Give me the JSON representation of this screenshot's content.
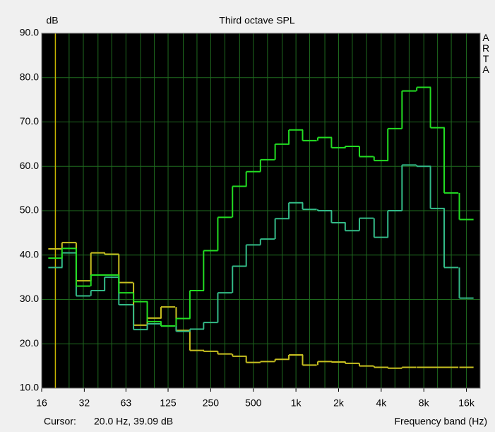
{
  "chart_data": {
    "type": "step",
    "title": "Third octave SPL",
    "y_label": "dB",
    "x_label": "Frequency band (Hz)",
    "brand": "ARTA",
    "log_x": true,
    "grid": true,
    "background": "#000000",
    "grid_color": "#1f6b1f",
    "xlim": [
      16,
      20000
    ],
    "xticks": [
      16,
      32,
      63,
      125,
      250,
      500,
      {
        "value": 1000,
        "label": "1k"
      },
      {
        "value": 2000,
        "label": "2k"
      },
      {
        "value": 4000,
        "label": "4k"
      },
      {
        "value": 8000,
        "label": "8k"
      },
      {
        "value": 16000,
        "label": "16k"
      }
    ],
    "ylim": [
      10,
      90
    ],
    "yticks": [
      {
        "value": 10,
        "label": "10.0"
      },
      {
        "value": 20,
        "label": "20.0"
      },
      {
        "value": 30,
        "label": "30.0"
      },
      {
        "value": 40,
        "label": "40.0"
      },
      {
        "value": 50,
        "label": "50.0"
      },
      {
        "value": 60,
        "label": "60.0"
      },
      {
        "value": 70,
        "label": "70.0"
      },
      {
        "value": 80,
        "label": "80.0"
      },
      {
        "value": 90,
        "label": "90.0"
      }
    ],
    "x": [
      20,
      25,
      31.5,
      40,
      50,
      63,
      80,
      100,
      125,
      160,
      200,
      250,
      315,
      400,
      500,
      630,
      800,
      1000,
      1250,
      1600,
      2000,
      2500,
      3150,
      4000,
      5000,
      6300,
      8000,
      10000,
      12500,
      16000
    ],
    "series": [
      {
        "color": "#c8c020",
        "values": [
          41.4,
          42.8,
          34.2,
          40.5,
          40.2,
          33.8,
          24.2,
          25.8,
          28.3,
          23,
          18.5,
          18.3,
          17.7,
          17.2,
          15.8,
          16,
          16.5,
          17.5,
          15.2,
          16,
          15.9,
          15.6,
          15,
          14.7,
          14.5,
          14.7,
          14.7,
          14.7,
          14.7,
          14.7
        ]
      },
      {
        "color": "#33bb88",
        "values": [
          37.2,
          40.5,
          30.8,
          32,
          35,
          28.8,
          23.2,
          24.5,
          24,
          22.8,
          23.3,
          24.8,
          31.5,
          37.5,
          42.3,
          43.6,
          48.2,
          51.8,
          50.3,
          50,
          47.3,
          45.5,
          48.3,
          44,
          50,
          60.3,
          60,
          50.5,
          37.2,
          30.3
        ]
      },
      {
        "color": "#22dd22",
        "values": [
          39.3,
          41.5,
          33,
          35.5,
          35.5,
          31.5,
          29.5,
          25,
          24,
          25.7,
          32,
          41,
          48.5,
          55.5,
          58.8,
          61.5,
          65,
          68.2,
          65.8,
          66.5,
          64.2,
          64.5,
          62.2,
          61.3,
          68.5,
          77,
          77.8,
          68.7,
          54,
          48
        ]
      }
    ],
    "cursor": {
      "label": "Cursor:",
      "text": "20.0 Hz, 39.09 dB",
      "x": 20,
      "color": "#c8b400"
    }
  }
}
